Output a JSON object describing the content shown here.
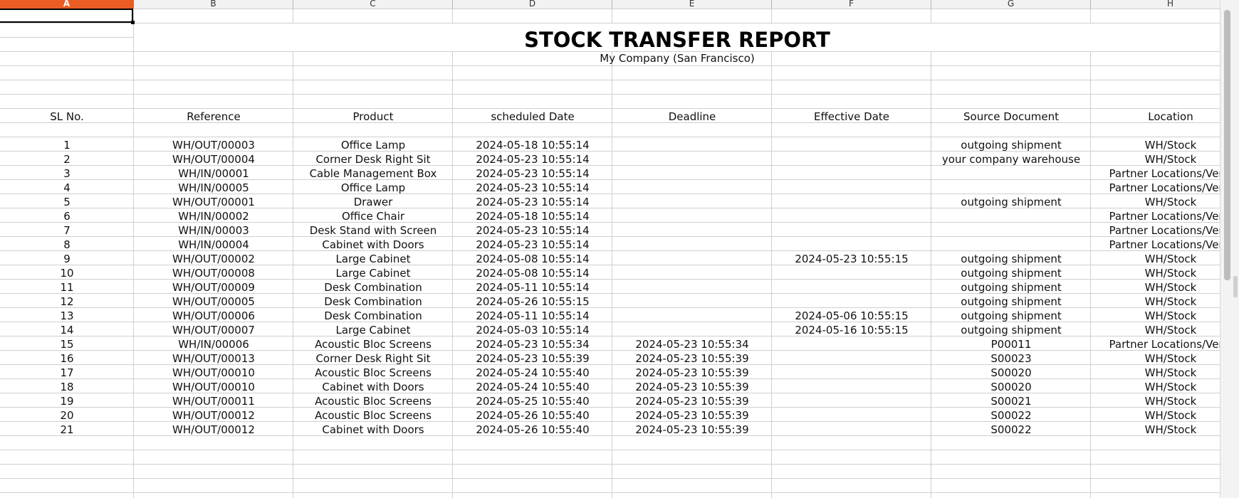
{
  "columns": [
    "A",
    "B",
    "C",
    "D",
    "E",
    "F",
    "G",
    "H"
  ],
  "active_column": "A",
  "report": {
    "title": "STOCK TRANSFER REPORT",
    "company": "My Company (San Francisco)"
  },
  "headers": [
    "SL No.",
    "Reference",
    "Product",
    "scheduled Date",
    "Deadline",
    "Effective Date",
    "Source Document",
    "Location"
  ],
  "rows": [
    [
      "1",
      "WH/OUT/00003",
      "Office Lamp",
      "2024-05-18 10:55:14",
      "",
      "",
      "outgoing shipment",
      "WH/Stock"
    ],
    [
      "2",
      "WH/OUT/00004",
      "Corner Desk Right Sit",
      "2024-05-23 10:55:14",
      "",
      "",
      "your company warehouse",
      "WH/Stock"
    ],
    [
      "3",
      "WH/IN/00001",
      "Cable Management Box",
      "2024-05-23 10:55:14",
      "",
      "",
      "",
      "Partner Locations/Vend"
    ],
    [
      "4",
      "WH/IN/00005",
      "Office Lamp",
      "2024-05-23 10:55:14",
      "",
      "",
      "",
      "Partner Locations/Vend"
    ],
    [
      "5",
      "WH/OUT/00001",
      "Drawer",
      "2024-05-23 10:55:14",
      "",
      "",
      "outgoing shipment",
      "WH/Stock"
    ],
    [
      "6",
      "WH/IN/00002",
      "Office Chair",
      "2024-05-18 10:55:14",
      "",
      "",
      "",
      "Partner Locations/Vend"
    ],
    [
      "7",
      "WH/IN/00003",
      "Desk Stand with Screen",
      "2024-05-23 10:55:14",
      "",
      "",
      "",
      "Partner Locations/Vend"
    ],
    [
      "8",
      "WH/IN/00004",
      "Cabinet with Doors",
      "2024-05-23 10:55:14",
      "",
      "",
      "",
      "Partner Locations/Vend"
    ],
    [
      "9",
      "WH/OUT/00002",
      "Large Cabinet",
      "2024-05-08 10:55:14",
      "",
      "2024-05-23 10:55:15",
      "outgoing shipment",
      "WH/Stock"
    ],
    [
      "10",
      "WH/OUT/00008",
      "Large Cabinet",
      "2024-05-08 10:55:14",
      "",
      "",
      "outgoing shipment",
      "WH/Stock"
    ],
    [
      "11",
      "WH/OUT/00009",
      "Desk Combination",
      "2024-05-11 10:55:14",
      "",
      "",
      "outgoing shipment",
      "WH/Stock"
    ],
    [
      "12",
      "WH/OUT/00005",
      "Desk Combination",
      "2024-05-26 10:55:15",
      "",
      "",
      "outgoing shipment",
      "WH/Stock"
    ],
    [
      "13",
      "WH/OUT/00006",
      "Desk Combination",
      "2024-05-11 10:55:14",
      "",
      "2024-05-06 10:55:15",
      "outgoing shipment",
      "WH/Stock"
    ],
    [
      "14",
      "WH/OUT/00007",
      "Large Cabinet",
      "2024-05-03 10:55:14",
      "",
      "2024-05-16 10:55:15",
      "outgoing shipment",
      "WH/Stock"
    ],
    [
      "15",
      "WH/IN/00006",
      "Acoustic Bloc Screens",
      "2024-05-23 10:55:34",
      "2024-05-23 10:55:34",
      "",
      "P00011",
      "Partner Locations/Vend"
    ],
    [
      "16",
      "WH/OUT/00013",
      "Corner Desk Right Sit",
      "2024-05-23 10:55:39",
      "2024-05-23 10:55:39",
      "",
      "S00023",
      "WH/Stock"
    ],
    [
      "17",
      "WH/OUT/00010",
      "Acoustic Bloc Screens",
      "2024-05-24 10:55:40",
      "2024-05-23 10:55:39",
      "",
      "S00020",
      "WH/Stock"
    ],
    [
      "18",
      "WH/OUT/00010",
      "Cabinet with Doors",
      "2024-05-24 10:55:40",
      "2024-05-23 10:55:39",
      "",
      "S00020",
      "WH/Stock"
    ],
    [
      "19",
      "WH/OUT/00011",
      "Acoustic Bloc Screens",
      "2024-05-25 10:55:40",
      "2024-05-23 10:55:39",
      "",
      "S00021",
      "WH/Stock"
    ],
    [
      "20",
      "WH/OUT/00012",
      "Acoustic Bloc Screens",
      "2024-05-26 10:55:40",
      "2024-05-23 10:55:39",
      "",
      "S00022",
      "WH/Stock"
    ],
    [
      "21",
      "WH/OUT/00012",
      "Cabinet with Doors",
      "2024-05-26 10:55:40",
      "2024-05-23 10:55:39",
      "",
      "S00022",
      "WH/Stock"
    ]
  ],
  "colors": {
    "active_column_bg": "#e95d25",
    "gridline": "#cfcfcf"
  }
}
